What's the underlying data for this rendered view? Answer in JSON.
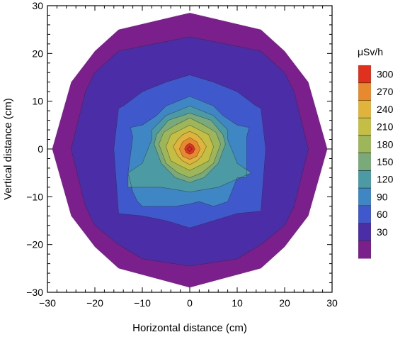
{
  "chart_data": {
    "type": "contour",
    "title": "",
    "xlabel": "Horizontal distance (cm)",
    "ylabel": "Vertical distance (cm)",
    "xlim": [
      -30,
      30
    ],
    "ylim": [
      -30,
      30
    ],
    "xticks": [
      "−30",
      "−20",
      "−10",
      "0",
      "10",
      "20",
      "30"
    ],
    "yticks": [
      "−30",
      "−20",
      "−10",
      "0",
      "10",
      "20",
      "30"
    ],
    "colorbar": {
      "title": "μSv/h",
      "levels": [
        "300",
        "270",
        "240",
        "210",
        "180",
        "150",
        "120",
        "90",
        "60",
        "30"
      ]
    },
    "contours": [
      {
        "level": 0,
        "color": "#7b1f8c",
        "points": [
          [
            -29,
            0
          ],
          [
            -25,
            14
          ],
          [
            -20,
            20.5
          ],
          [
            -15,
            25
          ],
          [
            0,
            28.5
          ],
          [
            15,
            25
          ],
          [
            20,
            20.5
          ],
          [
            25,
            14
          ],
          [
            29,
            0
          ],
          [
            25,
            -14
          ],
          [
            20,
            -20.5
          ],
          [
            15,
            -25
          ],
          [
            0,
            -29
          ],
          [
            -15,
            -25
          ],
          [
            -20,
            -20.5
          ],
          [
            -25,
            -14
          ]
        ]
      },
      {
        "level": 30,
        "color": "#4b2ea7",
        "points": [
          [
            -25,
            0
          ],
          [
            -22,
            12
          ],
          [
            -20,
            16
          ],
          [
            -15,
            20.5
          ],
          [
            -10,
            21.5
          ],
          [
            0,
            23.5
          ],
          [
            10,
            21.5
          ],
          [
            15,
            20.5
          ],
          [
            20,
            16
          ],
          [
            22,
            12
          ],
          [
            25,
            0
          ],
          [
            22,
            -12
          ],
          [
            20,
            -16
          ],
          [
            15,
            -20
          ],
          [
            10,
            -23
          ],
          [
            0,
            -24.5
          ],
          [
            -10,
            -23
          ],
          [
            -15,
            -20
          ],
          [
            -20,
            -16
          ],
          [
            -22,
            -12
          ]
        ]
      },
      {
        "level": 60,
        "color": "#3f59cd",
        "points": [
          [
            -16,
            0
          ],
          [
            -15,
            8.5
          ],
          [
            -14,
            9
          ],
          [
            -10,
            12
          ],
          [
            -5,
            14
          ],
          [
            0,
            15.5
          ],
          [
            5,
            14
          ],
          [
            10,
            12
          ],
          [
            14,
            9
          ],
          [
            15,
            8.5
          ],
          [
            16,
            0
          ],
          [
            15,
            -13
          ],
          [
            10,
            -13.5
          ],
          [
            5,
            -15
          ],
          [
            0,
            -16.5
          ],
          [
            -5,
            -15
          ],
          [
            -10,
            -14
          ],
          [
            -15,
            -13.5
          ]
        ]
      },
      {
        "level": 90,
        "color": "#3f86c5",
        "points": [
          [
            -13,
            -5
          ],
          [
            -12,
            2.5
          ],
          [
            -12.5,
            4.5
          ],
          [
            -10,
            5
          ],
          [
            -7,
            7
          ],
          [
            -5,
            9
          ],
          [
            0,
            11
          ],
          [
            5,
            9
          ],
          [
            7,
            7
          ],
          [
            10,
            5
          ],
          [
            12.5,
            4.5
          ],
          [
            12,
            2.5
          ],
          [
            12,
            -6
          ],
          [
            10,
            -6
          ],
          [
            8,
            -11
          ],
          [
            5,
            -12
          ],
          [
            2,
            -11
          ],
          [
            0,
            -11.5
          ],
          [
            -3,
            -12
          ],
          [
            -6,
            -12
          ],
          [
            -10,
            -12
          ],
          [
            -11,
            -11
          ],
          [
            -12,
            -9
          ]
        ]
      },
      {
        "level": 120,
        "color": "#4b9aa4",
        "points": [
          [
            -13,
            -5
          ],
          [
            -10,
            -3
          ],
          [
            -8,
            2
          ],
          [
            -8,
            4
          ],
          [
            -5,
            7
          ],
          [
            0,
            9
          ],
          [
            5,
            7
          ],
          [
            8,
            4
          ],
          [
            8,
            2
          ],
          [
            10,
            -3
          ],
          [
            13,
            -5
          ],
          [
            6,
            -8
          ],
          [
            0,
            -9
          ],
          [
            -6,
            -8
          ],
          [
            -13,
            -8
          ]
        ]
      },
      {
        "level": 150,
        "color": "#7aaa7a",
        "points": [
          [
            -7.5,
            1
          ],
          [
            -7,
            3
          ],
          [
            -4.5,
            6
          ],
          [
            0,
            7.5
          ],
          [
            4.5,
            6
          ],
          [
            7,
            3
          ],
          [
            7.5,
            1
          ],
          [
            6,
            -3
          ],
          [
            3,
            -6
          ],
          [
            0,
            -7
          ],
          [
            -3,
            -6
          ],
          [
            -6,
            -3
          ]
        ]
      },
      {
        "level": 180,
        "color": "#9eb65a",
        "points": [
          [
            -6.5,
            1
          ],
          [
            -5.5,
            3.5
          ],
          [
            -3,
            5
          ],
          [
            0,
            6.5
          ],
          [
            3,
            5
          ],
          [
            5.5,
            3.5
          ],
          [
            6.5,
            1
          ],
          [
            5,
            -3
          ],
          [
            2.5,
            -5
          ],
          [
            0,
            -6
          ],
          [
            -2.5,
            -5
          ],
          [
            -5,
            -3
          ]
        ]
      },
      {
        "level": 210,
        "color": "#c4be44",
        "points": [
          [
            -5,
            0.5
          ],
          [
            -4,
            3
          ],
          [
            -2,
            4
          ],
          [
            0,
            5
          ],
          [
            2,
            4
          ],
          [
            4,
            3
          ],
          [
            5,
            0.5
          ],
          [
            4,
            -2.5
          ],
          [
            2,
            -3.5
          ],
          [
            0,
            -4.5
          ],
          [
            -2,
            -3.5
          ],
          [
            -4,
            -2.5
          ]
        ]
      },
      {
        "level": 240,
        "color": "#e0b33c",
        "points": [
          [
            -3.5,
            0.5
          ],
          [
            -2.5,
            2
          ],
          [
            -1.5,
            3
          ],
          [
            0,
            3.7
          ],
          [
            1.5,
            3
          ],
          [
            2.5,
            2
          ],
          [
            3.5,
            0.5
          ],
          [
            2.5,
            -1.5
          ],
          [
            1.5,
            -2.5
          ],
          [
            0,
            -3.3
          ],
          [
            -1.5,
            -2.5
          ],
          [
            -2.5,
            -1.5
          ]
        ]
      },
      {
        "level": 270,
        "color": "#e6892f",
        "points": [
          [
            -2.2,
            0
          ],
          [
            -1.5,
            1.5
          ],
          [
            0,
            2.4
          ],
          [
            1.5,
            1.5
          ],
          [
            2.2,
            0
          ],
          [
            1.5,
            -1.5
          ],
          [
            0,
            -2.2
          ],
          [
            -1.5,
            -1.5
          ]
        ]
      },
      {
        "level": 300,
        "color": "#e0301e",
        "points": [
          [
            -1.1,
            0
          ],
          [
            -0.7,
            0.8
          ],
          [
            0,
            1.2
          ],
          [
            0.7,
            0.8
          ],
          [
            1.1,
            0
          ],
          [
            0.7,
            -0.8
          ],
          [
            0,
            -1.1
          ],
          [
            -0.7,
            -0.8
          ]
        ]
      }
    ],
    "extra_lines": [
      {
        "level": 300,
        "points": [
          [
            -0.5,
            0
          ],
          [
            0,
            0.5
          ],
          [
            0.5,
            0
          ],
          [
            0,
            -0.5
          ]
        ]
      }
    ],
    "colorbar_colors": [
      "#e0301e",
      "#e6892f",
      "#e0b33c",
      "#c4be44",
      "#9eb65a",
      "#7aaa7a",
      "#4b9aa4",
      "#3f86c5",
      "#3f59cd",
      "#4b2ea7",
      "#7b1f8c"
    ]
  }
}
